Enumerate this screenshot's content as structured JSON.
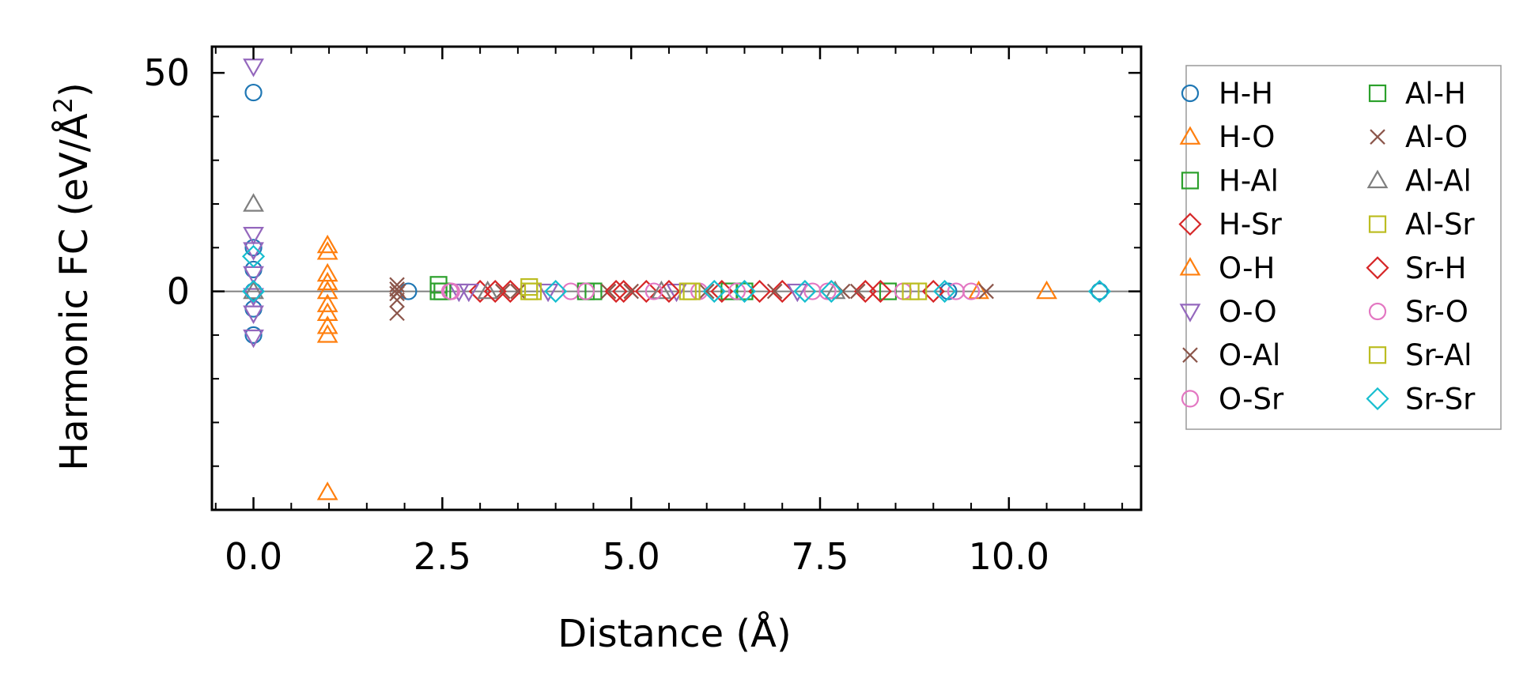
{
  "chart_data": {
    "type": "scatter",
    "title": "",
    "xlabel": "Distance (Å)",
    "ylabel_main": "Harmonic FC (eV/Å",
    "ylabel_sup": "2",
    "ylabel_close": ")",
    "xlim": [
      -0.55,
      11.75
    ],
    "ylim": [
      -50,
      56
    ],
    "xticks": [
      0.0,
      2.5,
      5.0,
      7.5,
      10.0
    ],
    "xtick_labels": [
      "0.0",
      "2.5",
      "5.0",
      "7.5",
      "10.0"
    ],
    "yticks": [
      0,
      50
    ],
    "ytick_labels": [
      "0",
      "50"
    ],
    "x_minor_step": 0.5,
    "y_minor_step": 10,
    "zero_line": true,
    "grid": false,
    "legend_position": "outside right",
    "series": [
      {
        "name": "H-H",
        "marker": "circle",
        "color": "#1f77b4",
        "points": [
          [
            0.0,
            45.5
          ],
          [
            0.0,
            10.0
          ],
          [
            0.0,
            5.0
          ],
          [
            0.0,
            0.0
          ],
          [
            0.0,
            -4.0
          ],
          [
            0.0,
            -10.0
          ],
          [
            2.05,
            0.0
          ],
          [
            9.2,
            0.0
          ],
          [
            11.2,
            0.0
          ]
        ]
      },
      {
        "name": "H-O",
        "marker": "triangle-up",
        "color": "#ff7f0e",
        "points": [
          [
            0.98,
            -46.0
          ],
          [
            0.98,
            -10.0
          ],
          [
            0.98,
            -5.0
          ],
          [
            0.98,
            0.0
          ],
          [
            0.98,
            4.0
          ],
          [
            0.98,
            9.0
          ],
          [
            10.5,
            0.0
          ]
        ]
      },
      {
        "name": "H-Al",
        "marker": "square",
        "color": "#2ca02c",
        "points": [
          [
            2.45,
            0.0
          ],
          [
            2.45,
            1.5
          ],
          [
            4.5,
            0.0
          ],
          [
            6.3,
            0.0
          ],
          [
            8.4,
            0.0
          ]
        ]
      },
      {
        "name": "H-Sr",
        "marker": "diamond",
        "color": "#d62728",
        "points": [
          [
            3.0,
            0.0
          ],
          [
            3.4,
            0.0
          ],
          [
            4.9,
            0.0
          ],
          [
            5.2,
            0.0
          ],
          [
            6.2,
            0.0
          ],
          [
            7.0,
            0.0
          ],
          [
            8.1,
            0.0
          ],
          [
            9.0,
            0.0
          ]
        ]
      },
      {
        "name": "O-H",
        "marker": "triangle-up",
        "color": "#ff7f0e",
        "points": [
          [
            0.98,
            -8.0
          ],
          [
            0.98,
            -3.0
          ],
          [
            0.98,
            2.0
          ],
          [
            0.98,
            10.5
          ],
          [
            9.6,
            0.0
          ]
        ]
      },
      {
        "name": "O-O",
        "marker": "triangle-down",
        "color": "#9467bd",
        "points": [
          [
            0.0,
            51.5
          ],
          [
            0.0,
            13.0
          ],
          [
            0.0,
            9.5
          ],
          [
            0.0,
            4.0
          ],
          [
            0.0,
            -1.0
          ],
          [
            0.0,
            -5.0
          ],
          [
            0.0,
            -10.5
          ],
          [
            2.72,
            0.0
          ],
          [
            2.85,
            0.0
          ],
          [
            3.9,
            0.0
          ],
          [
            5.6,
            0.0
          ],
          [
            7.2,
            0.0
          ]
        ]
      },
      {
        "name": "O-Al",
        "marker": "x",
        "color": "#8c564b",
        "points": [
          [
            1.9,
            1.5
          ],
          [
            1.9,
            0.5
          ],
          [
            1.9,
            -0.5
          ],
          [
            1.9,
            -2.0
          ],
          [
            1.9,
            -5.0
          ],
          [
            3.5,
            0.0
          ],
          [
            5.0,
            0.0
          ],
          [
            6.9,
            0.0
          ],
          [
            8.0,
            0.0
          ],
          [
            9.7,
            0.0
          ]
        ]
      },
      {
        "name": "O-Sr",
        "marker": "circle",
        "color": "#e377c2",
        "points": [
          [
            2.6,
            0.0
          ],
          [
            4.2,
            0.0
          ],
          [
            5.9,
            0.0
          ],
          [
            7.4,
            0.0
          ],
          [
            8.6,
            0.0
          ],
          [
            9.5,
            0.0
          ]
        ]
      },
      {
        "name": "Al-H",
        "marker": "square",
        "color": "#2ca02c",
        "points": [
          [
            2.5,
            0.0
          ],
          [
            4.4,
            0.0
          ],
          [
            6.5,
            0.0
          ]
        ]
      },
      {
        "name": "Al-O",
        "marker": "x",
        "color": "#8c564b",
        "points": [
          [
            1.92,
            0.0
          ],
          [
            3.3,
            0.0
          ],
          [
            4.7,
            0.0
          ],
          [
            6.0,
            0.0
          ],
          [
            7.8,
            0.0
          ]
        ]
      },
      {
        "name": "Al-Al",
        "marker": "triangle-up",
        "color": "#7f7f7f",
        "points": [
          [
            0.0,
            20.0
          ],
          [
            0.0,
            0.0
          ],
          [
            3.1,
            0.0
          ],
          [
            5.4,
            0.0
          ],
          [
            7.7,
            0.0
          ]
        ]
      },
      {
        "name": "Al-Sr",
        "marker": "square",
        "color": "#bcbd22",
        "points": [
          [
            3.65,
            0.0
          ],
          [
            3.65,
            1.0
          ],
          [
            5.8,
            0.0
          ],
          [
            8.8,
            0.0
          ]
        ]
      },
      {
        "name": "Sr-H",
        "marker": "diamond",
        "color": "#d62728",
        "points": [
          [
            3.2,
            0.0
          ],
          [
            4.8,
            0.0
          ],
          [
            5.5,
            0.0
          ],
          [
            6.7,
            0.0
          ],
          [
            8.3,
            0.0
          ]
        ]
      },
      {
        "name": "Sr-O",
        "marker": "circle",
        "color": "#e377c2",
        "points": [
          [
            2.62,
            0.0
          ],
          [
            4.4,
            0.0
          ],
          [
            5.3,
            0.0
          ],
          [
            6.4,
            0.0
          ],
          [
            7.6,
            0.0
          ],
          [
            9.3,
            0.0
          ]
        ]
      },
      {
        "name": "Sr-Al",
        "marker": "square",
        "color": "#bcbd22",
        "points": [
          [
            3.7,
            0.0
          ],
          [
            5.75,
            0.0
          ],
          [
            8.7,
            0.0
          ]
        ]
      },
      {
        "name": "Sr-Sr",
        "marker": "diamond",
        "color": "#17becf",
        "points": [
          [
            0.0,
            8.0
          ],
          [
            0.0,
            0.0
          ],
          [
            4.0,
            0.0
          ],
          [
            6.1,
            0.0
          ],
          [
            6.5,
            0.0
          ],
          [
            7.3,
            0.0
          ],
          [
            7.65,
            0.0
          ],
          [
            9.15,
            0.0
          ],
          [
            11.2,
            0.0
          ]
        ]
      }
    ]
  }
}
